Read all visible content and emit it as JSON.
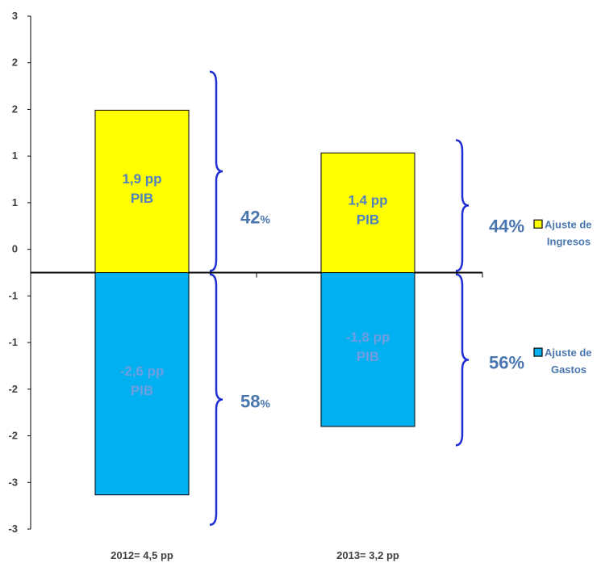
{
  "chart_data": {
    "type": "bar",
    "stacked": true,
    "categories": [
      "2012= 4,5 pp",
      "2013= 3,2 pp"
    ],
    "series": [
      {
        "name": "Ajuste de Ingresos",
        "values": [
          1.9,
          1.4
        ],
        "color": "#ffff00"
      },
      {
        "name": "Ajuste de Gastos",
        "values": [
          -2.6,
          -1.8
        ],
        "color": "#00b0f0"
      }
    ],
    "data_labels": [
      [
        "1,9 pp",
        "PIB"
      ],
      [
        "1,4 pp",
        "PIB"
      ],
      [
        "-2,6 pp",
        "PIB"
      ],
      [
        "-1,8 pp",
        "PIB"
      ]
    ],
    "shares": [
      {
        "value": "42",
        "unit": "%"
      },
      {
        "value": "44%",
        "unit": ""
      },
      {
        "value": "58",
        "unit": "%"
      },
      {
        "value": "56%",
        "unit": ""
      }
    ],
    "ylim": [
      -3,
      3
    ],
    "y_tick_labels": [
      "3",
      "2",
      "2",
      "1",
      "1",
      "0",
      "-1",
      "-1",
      "-2",
      "-2",
      "-3",
      "-3"
    ],
    "legend_labels": [
      [
        "Ajuste de",
        "Ingresos"
      ],
      [
        "Ajuste de",
        "Gastos"
      ]
    ],
    "legend_position": "right",
    "grid": false
  }
}
